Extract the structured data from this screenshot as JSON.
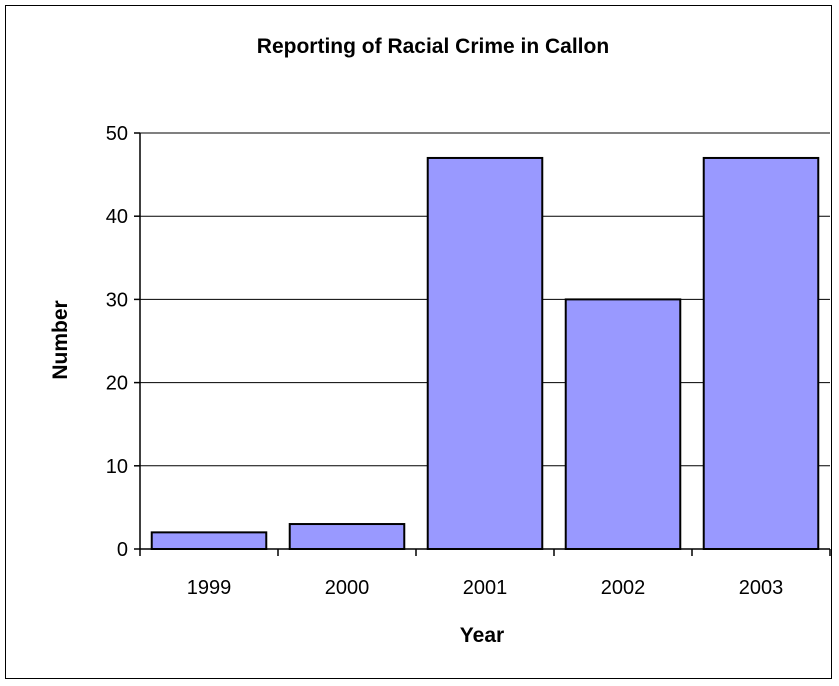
{
  "chart_data": {
    "type": "bar",
    "title": "Reporting of Racial Crime in Callon",
    "xlabel": "Year",
    "ylabel": "Number",
    "categories": [
      "1999",
      "2000",
      "2001",
      "2002",
      "2003"
    ],
    "values": [
      2,
      3,
      47,
      30,
      47
    ],
    "ylim": [
      0,
      50
    ],
    "yticks": [
      0,
      10,
      20,
      30,
      40,
      50
    ],
    "grid": true,
    "legend": "none",
    "colors": {
      "bar_fill": "#9999ff",
      "bar_stroke": "#000000",
      "grid": "#000000"
    }
  }
}
